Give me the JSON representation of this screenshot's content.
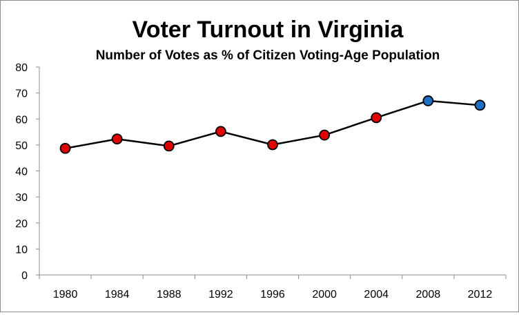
{
  "colors": {
    "line": "#000000",
    "marker_red": "#e00000",
    "marker_blue": "#1f6fc5",
    "axis": "#8c8c8c"
  },
  "chart_data": {
    "type": "line",
    "title": "Voter Turnout in Virginia",
    "subtitle": "Number of Votes as % of Citizen Voting-Age Population",
    "xlabel": "",
    "ylabel": "",
    "categories": [
      "1980",
      "1984",
      "1988",
      "1992",
      "1996",
      "2000",
      "2004",
      "2008",
      "2012"
    ],
    "series": [
      {
        "values": [
          48.7,
          52.3,
          49.6,
          55.2,
          50.1,
          53.8,
          60.5,
          67.0,
          65.3
        ],
        "marker_colors": [
          "red",
          "red",
          "red",
          "red",
          "red",
          "red",
          "red",
          "blue",
          "blue"
        ]
      }
    ],
    "ylim": [
      0,
      80
    ],
    "yticks": [
      "0",
      "10",
      "20",
      "30",
      "40",
      "50",
      "60",
      "70",
      "80"
    ],
    "grid": false,
    "legend": "none"
  }
}
